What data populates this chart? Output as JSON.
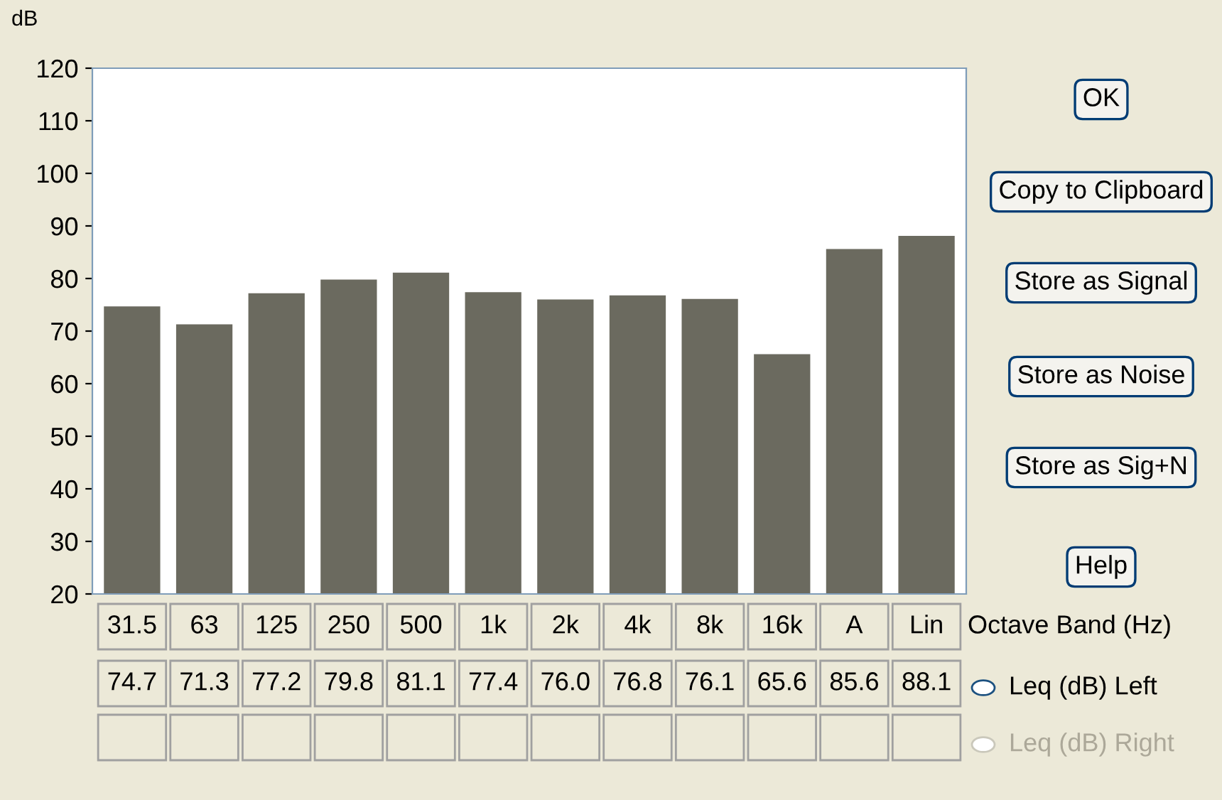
{
  "chart_data": {
    "type": "bar",
    "ylabel": "dB",
    "xlabel": "Octave Band (Hz)",
    "categories": [
      "31.5",
      "63",
      "125",
      "250",
      "500",
      "1k",
      "2k",
      "4k",
      "8k",
      "16k",
      "A",
      "Lin"
    ],
    "values": [
      74.7,
      71.3,
      77.2,
      79.8,
      81.1,
      77.4,
      76.0,
      76.8,
      76.1,
      65.6,
      85.6,
      88.1
    ],
    "value_labels": [
      "74.7",
      "71.3",
      "77.2",
      "79.8",
      "81.1",
      "77.4",
      "76.0",
      "76.8",
      "76.1",
      "65.6",
      "85.6",
      "88.1"
    ],
    "color": "#6b6a5f",
    "ylim": [
      20,
      120
    ],
    "yticks": [
      20,
      30,
      40,
      50,
      60,
      70,
      80,
      90,
      100,
      110,
      120
    ],
    "grid": false,
    "annotations": [
      "OK",
      "Copy to Clipboard",
      "Store as Signal",
      "Store as Noise",
      "Store as Sig+N",
      "Help",
      "Leq (dB) Left",
      "Leq (dB) Right"
    ]
  }
}
